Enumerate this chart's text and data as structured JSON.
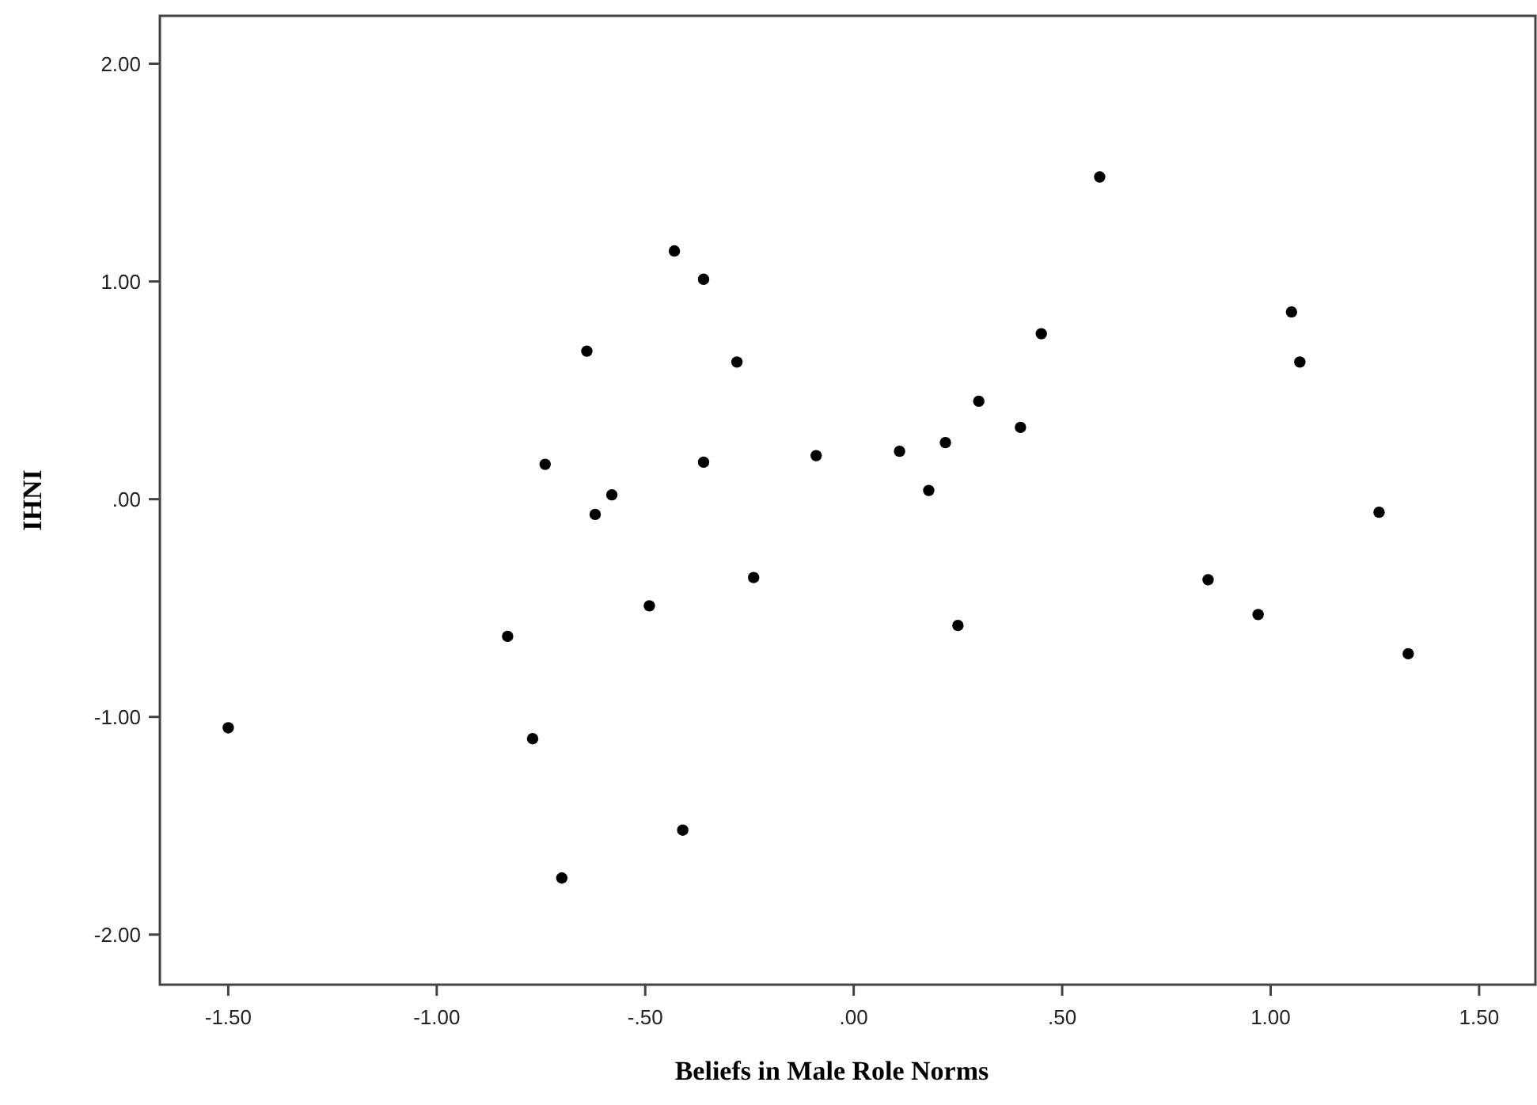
{
  "chart_data": {
    "type": "scatter",
    "xlabel": "Beliefs in Male Role Norms",
    "ylabel": "IHNI",
    "marker": "circle",
    "grid": false,
    "xlim": [
      -1.664,
      1.635
    ],
    "ylim": [
      -2.23,
      2.22
    ],
    "xticks": [
      {
        "value": -1.5,
        "label": "-1.50"
      },
      {
        "value": -1,
        "label": "-1.00"
      },
      {
        "value": -0.5,
        "label": "-.50"
      },
      {
        "value": 0,
        "label": ".00"
      },
      {
        "value": 0.5,
        "label": ".50"
      },
      {
        "value": 1,
        "label": "1.00"
      },
      {
        "value": 1.5,
        "label": "1.50"
      }
    ],
    "yticks": [
      {
        "value": -2,
        "label": "-2.00"
      },
      {
        "value": -1,
        "label": "-1.00"
      },
      {
        "value": 0,
        "label": ".00"
      },
      {
        "value": 1,
        "label": "1.00"
      },
      {
        "value": 2,
        "label": "2.00"
      }
    ],
    "series": [
      {
        "color": "#000000",
        "x": [
          -1.5,
          -0.64,
          -0.74,
          -0.58,
          -0.62,
          -0.83,
          -0.77,
          -0.7,
          -0.43,
          -0.36,
          -0.28,
          -0.36,
          -0.49,
          -0.24,
          -0.41,
          -0.09,
          0.11,
          0.18,
          0.22,
          0.25,
          0.3,
          0.4,
          0.45,
          0.59,
          1.05,
          1.07,
          1.26,
          0.85,
          0.97,
          1.33
        ],
        "values": [
          -1.05,
          0.68,
          0.16,
          0.02,
          -0.07,
          -0.63,
          -1.1,
          -1.74,
          1.14,
          1.01,
          0.63,
          0.17,
          -0.49,
          -0.36,
          -1.52,
          0.2,
          0.22,
          0.04,
          0.26,
          -0.58,
          0.45,
          0.33,
          0.76,
          1.48,
          0.86,
          0.63,
          -0.06,
          -0.37,
          -0.53,
          -0.71
        ]
      }
    ]
  }
}
